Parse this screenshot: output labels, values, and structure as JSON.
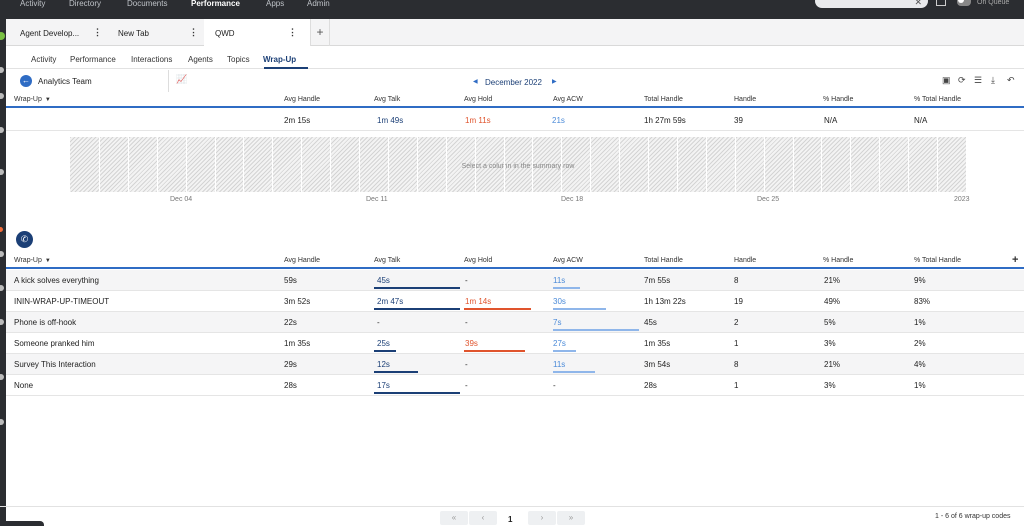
{
  "topnav": {
    "items": [
      "Activity",
      "Directory",
      "Documents",
      "Performance",
      "Apps",
      "Admin"
    ],
    "active": "Performance",
    "status": "On Queue"
  },
  "workspace_tabs": [
    {
      "label": "Agent Develop..."
    },
    {
      "label": "New Tab"
    },
    {
      "label": "QWD"
    }
  ],
  "add_tab_label": "+",
  "subtabs": [
    "Activity",
    "Performance",
    "Interactions",
    "Agents",
    "Topics",
    "Wrap-Up"
  ],
  "active_subtab": "Wrap-Up",
  "header": {
    "team": "Analytics Team",
    "month": "December 2022"
  },
  "columns": [
    "Wrap-Up",
    "Avg Handle",
    "Avg Talk",
    "Avg Hold",
    "Avg ACW",
    "Total Handle",
    "Handle",
    "% Handle",
    "% Total Handle"
  ],
  "summary": {
    "avg_handle": "2m 15s",
    "avg_talk": "1m 49s",
    "avg_hold": "1m 11s",
    "avg_acw": "21s",
    "total_handle": "1h 27m 59s",
    "handle": "39",
    "pct_handle": "N/A",
    "pct_total_handle": "N/A"
  },
  "chart": {
    "message": "Select a column in the summary row",
    "ticks": [
      "Dec 04",
      "Dec 11",
      "Dec 18",
      "Dec 25",
      "2023"
    ]
  },
  "rows": [
    {
      "wrapup": "A kick solves everything",
      "avg_handle": "59s",
      "avg_talk": "45s",
      "avg_hold": "-",
      "avg_acw": "11s",
      "total_handle": "7m 55s",
      "handle": "8",
      "pct_handle": "21%",
      "pct_total": "9%",
      "talk_bar": 1.0,
      "hold_bar": 0,
      "acw_bar": 0.31
    },
    {
      "wrapup": "ININ-WRAP-UP-TIMEOUT",
      "avg_handle": "3m 52s",
      "avg_talk": "2m 47s",
      "avg_hold": "1m 14s",
      "avg_acw": "30s",
      "total_handle": "1h 13m 22s",
      "handle": "19",
      "pct_handle": "49%",
      "pct_total": "83%",
      "talk_bar": 1.0,
      "hold_bar": 0.78,
      "acw_bar": 0.62
    },
    {
      "wrapup": "Phone is off-hook",
      "avg_handle": "22s",
      "avg_talk": "-",
      "avg_hold": "-",
      "avg_acw": "7s",
      "total_handle": "45s",
      "handle": "2",
      "pct_handle": "5%",
      "pct_total": "1%",
      "talk_bar": 0,
      "hold_bar": 0,
      "acw_bar": 1.0
    },
    {
      "wrapup": "Someone pranked him",
      "avg_handle": "1m 35s",
      "avg_talk": "25s",
      "avg_hold": "39s",
      "avg_acw": "27s",
      "total_handle": "1m 35s",
      "handle": "1",
      "pct_handle": "3%",
      "pct_total": "2%",
      "talk_bar": 0.26,
      "hold_bar": 0.71,
      "acw_bar": 0.27
    },
    {
      "wrapup": "Survey This Interaction",
      "avg_handle": "29s",
      "avg_talk": "12s",
      "avg_hold": "-",
      "avg_acw": "11s",
      "total_handle": "3m 54s",
      "handle": "8",
      "pct_handle": "21%",
      "pct_total": "4%",
      "talk_bar": 0.51,
      "hold_bar": 0,
      "acw_bar": 0.49
    },
    {
      "wrapup": "None",
      "avg_handle": "28s",
      "avg_talk": "17s",
      "avg_hold": "-",
      "avg_acw": "-",
      "total_handle": "28s",
      "handle": "1",
      "pct_handle": "3%",
      "pct_total": "1%",
      "talk_bar": 1.0,
      "hold_bar": 0,
      "acw_bar": 0
    }
  ],
  "pager": {
    "page": "1",
    "count": "1 - 6 of 6 wrap-up codes"
  },
  "colors": {
    "accent": "#2f6cc4",
    "talk": "#1b3f76",
    "hold": "#e0542d",
    "acw": "#8fb6ea"
  }
}
